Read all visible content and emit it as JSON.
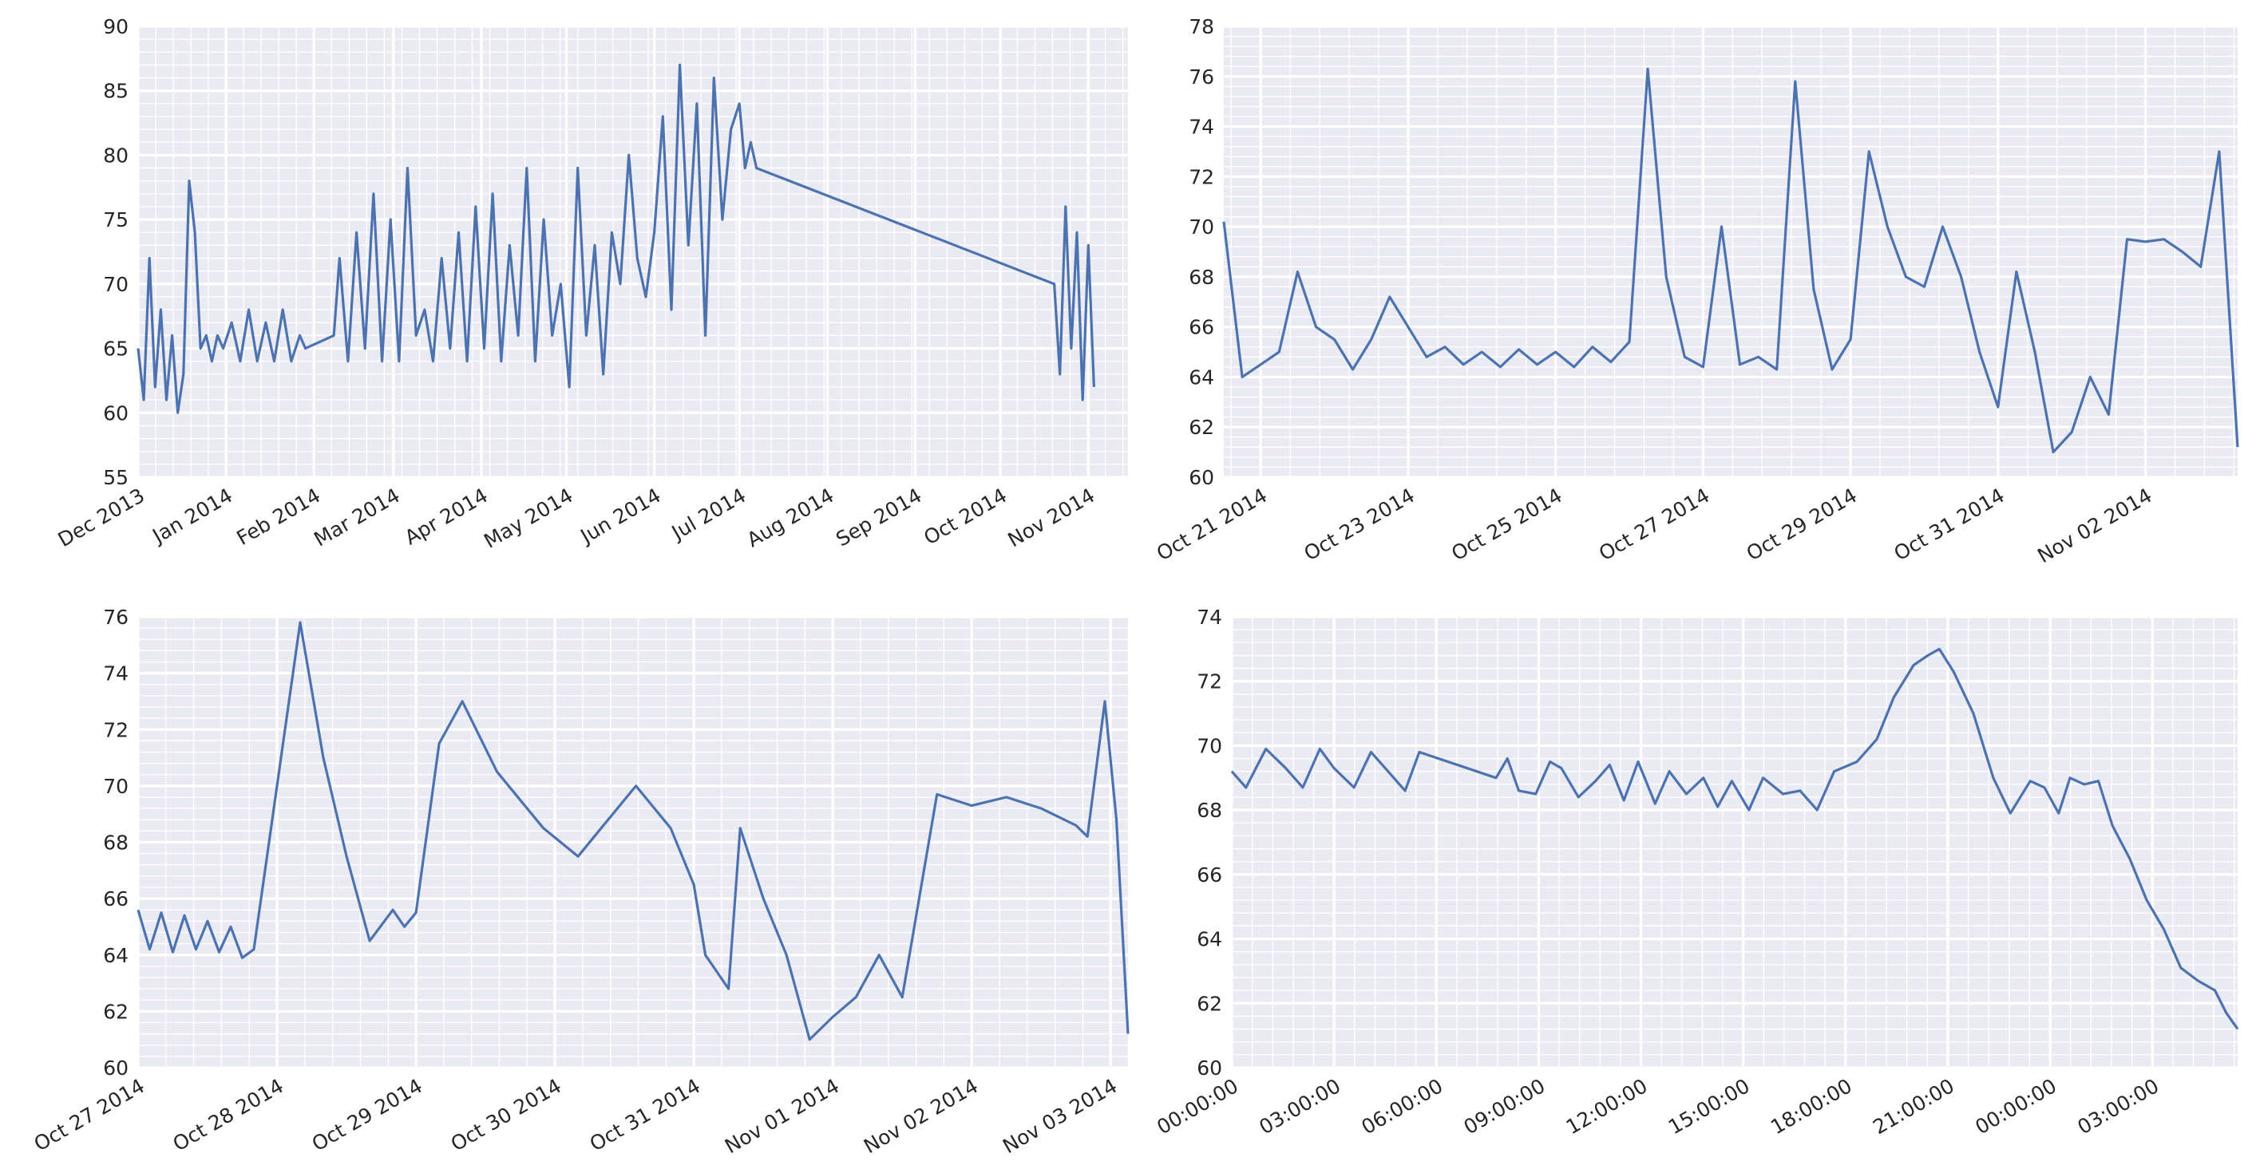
{
  "chart_data": [
    {
      "type": "line",
      "series_color": "#4C72B0",
      "background": "#EAEAF2",
      "grid": true,
      "xlabel": "",
      "ylabel": "",
      "xlim": [
        "2013-12-01",
        "2014-11-15"
      ],
      "ylim": [
        55,
        90
      ],
      "yticks": [
        55,
        60,
        65,
        70,
        75,
        80,
        85,
        90
      ],
      "xticks": [
        "2013-12-01",
        "2014-01-01",
        "2014-02-01",
        "2014-03-01",
        "2014-04-01",
        "2014-05-01",
        "2014-06-01",
        "2014-07-01",
        "2014-08-01",
        "2014-09-01",
        "2014-10-01",
        "2014-11-01"
      ],
      "xtick_labels": [
        "Dec 2013",
        "Jan 2014",
        "Feb 2014",
        "Mar 2014",
        "Apr 2014",
        "May 2014",
        "Jun 2014",
        "Jul 2014",
        "Aug 2014",
        "Sep 2014",
        "Oct 2014",
        "Nov 2014"
      ],
      "x": [
        "2013-12-01",
        "2013-12-03",
        "2013-12-05",
        "2013-12-07",
        "2013-12-09",
        "2013-12-11",
        "2013-12-13",
        "2013-12-15",
        "2013-12-17",
        "2013-12-19",
        "2013-12-21",
        "2013-12-23",
        "2013-12-25",
        "2013-12-27",
        "2013-12-29",
        "2013-12-31",
        "2014-01-03",
        "2014-01-06",
        "2014-01-09",
        "2014-01-12",
        "2014-01-15",
        "2014-01-18",
        "2014-01-21",
        "2014-01-24",
        "2014-01-27",
        "2014-01-29",
        "2014-02-08",
        "2014-02-10",
        "2014-02-13",
        "2014-02-16",
        "2014-02-19",
        "2014-02-22",
        "2014-02-25",
        "2014-02-28",
        "2014-03-03",
        "2014-03-06",
        "2014-03-09",
        "2014-03-12",
        "2014-03-15",
        "2014-03-18",
        "2014-03-21",
        "2014-03-24",
        "2014-03-27",
        "2014-03-30",
        "2014-04-02",
        "2014-04-05",
        "2014-04-08",
        "2014-04-11",
        "2014-04-14",
        "2014-04-17",
        "2014-04-20",
        "2014-04-23",
        "2014-04-26",
        "2014-04-29",
        "2014-05-02",
        "2014-05-05",
        "2014-05-08",
        "2014-05-11",
        "2014-05-14",
        "2014-05-17",
        "2014-05-20",
        "2014-05-23",
        "2014-05-26",
        "2014-05-29",
        "2014-06-01",
        "2014-06-04",
        "2014-06-07",
        "2014-06-10",
        "2014-06-13",
        "2014-06-16",
        "2014-06-19",
        "2014-06-22",
        "2014-06-25",
        "2014-06-28",
        "2014-07-01",
        "2014-07-03",
        "2014-07-05",
        "2014-07-07",
        "2014-10-20",
        "2014-10-22",
        "2014-10-24",
        "2014-10-26",
        "2014-10-28",
        "2014-10-30",
        "2014-11-01",
        "2014-11-03"
      ],
      "y": [
        65,
        61,
        72,
        62,
        68,
        61,
        66,
        60,
        63,
        78,
        74,
        65,
        66,
        64,
        66,
        65,
        67,
        64,
        68,
        64,
        67,
        64,
        68,
        64,
        66,
        65,
        66,
        72,
        64,
        74,
        65,
        77,
        64,
        75,
        64,
        79,
        66,
        68,
        64,
        72,
        65,
        74,
        64,
        76,
        65,
        77,
        64,
        73,
        66,
        79,
        64,
        75,
        66,
        70,
        62,
        79,
        66,
        73,
        63,
        74,
        70,
        80,
        72,
        69,
        74,
        83,
        68,
        87,
        73,
        84,
        66,
        86,
        75,
        82,
        84,
        79,
        81,
        79,
        70,
        63,
        76,
        65,
        74,
        61,
        73,
        62
      ]
    },
    {
      "type": "line",
      "series_color": "#4C72B0",
      "background": "#EAEAF2",
      "grid": true,
      "xlabel": "",
      "ylabel": "",
      "xlim": [
        "2014-10-20T12:00",
        "2014-11-03T06:00"
      ],
      "ylim": [
        60,
        78
      ],
      "yticks": [
        60,
        62,
        64,
        66,
        68,
        70,
        72,
        74,
        76,
        78
      ],
      "xticks": [
        "2014-10-21",
        "2014-10-23",
        "2014-10-25",
        "2014-10-27",
        "2014-10-29",
        "2014-10-31",
        "2014-11-02"
      ],
      "xtick_labels": [
        "Oct 21 2014",
        "Oct 23 2014",
        "Oct 25 2014",
        "Oct 27 2014",
        "Oct 29 2014",
        "Oct 31 2014",
        "Nov 02 2014"
      ],
      "x": [
        "2014-10-20T12:00",
        "2014-10-20T18:00",
        "2014-10-21T00:00",
        "2014-10-21T06:00",
        "2014-10-21T12:00",
        "2014-10-21T18:00",
        "2014-10-22T00:00",
        "2014-10-22T06:00",
        "2014-10-22T12:00",
        "2014-10-22T18:00",
        "2014-10-23T00:00",
        "2014-10-23T06:00",
        "2014-10-23T12:00",
        "2014-10-23T18:00",
        "2014-10-24T00:00",
        "2014-10-24T06:00",
        "2014-10-24T12:00",
        "2014-10-24T18:00",
        "2014-10-25T00:00",
        "2014-10-25T06:00",
        "2014-10-25T12:00",
        "2014-10-25T18:00",
        "2014-10-26T00:00",
        "2014-10-26T06:00",
        "2014-10-26T12:00",
        "2014-10-26T18:00",
        "2014-10-27T00:00",
        "2014-10-27T06:00",
        "2014-10-27T12:00",
        "2014-10-27T18:00",
        "2014-10-28T00:00",
        "2014-10-28T06:00",
        "2014-10-28T12:00",
        "2014-10-28T18:00",
        "2014-10-29T00:00",
        "2014-10-29T06:00",
        "2014-10-29T12:00",
        "2014-10-29T18:00",
        "2014-10-30T00:00",
        "2014-10-30T06:00",
        "2014-10-30T12:00",
        "2014-10-30T18:00",
        "2014-10-31T00:00",
        "2014-10-31T06:00",
        "2014-10-31T12:00",
        "2014-10-31T18:00",
        "2014-11-01T00:00",
        "2014-11-01T06:00",
        "2014-11-01T12:00",
        "2014-11-01T18:00",
        "2014-11-02T00:00",
        "2014-11-02T06:00",
        "2014-11-02T12:00",
        "2014-11-02T18:00",
        "2014-11-03T00:00",
        "2014-11-03T06:00"
      ],
      "y": [
        70.2,
        64.0,
        64.5,
        65.0,
        68.2,
        66.0,
        65.5,
        64.3,
        65.5,
        67.2,
        66.0,
        64.8,
        65.2,
        64.5,
        65.0,
        64.4,
        65.1,
        64.5,
        65.0,
        64.4,
        65.2,
        64.6,
        65.4,
        76.3,
        68.0,
        64.8,
        64.4,
        70.0,
        64.5,
        64.8,
        64.3,
        75.8,
        67.5,
        64.3,
        65.5,
        73.0,
        70.0,
        68.0,
        67.6,
        70.0,
        68.0,
        65.0,
        62.8,
        68.2,
        65.0,
        61.0,
        61.8,
        64.0,
        62.5,
        69.5,
        69.4,
        69.5,
        69.0,
        68.4,
        73.0,
        61.2
      ]
    },
    {
      "type": "line",
      "series_color": "#4C72B0",
      "background": "#EAEAF2",
      "grid": true,
      "xlabel": "",
      "ylabel": "",
      "xlim": [
        "2014-10-27T00:00",
        "2014-11-03T03:00"
      ],
      "ylim": [
        60,
        76
      ],
      "yticks": [
        60,
        62,
        64,
        66,
        68,
        70,
        72,
        74,
        76
      ],
      "xticks": [
        "2014-10-27",
        "2014-10-28",
        "2014-10-29",
        "2014-10-30",
        "2014-10-31",
        "2014-11-01",
        "2014-11-02",
        "2014-11-03"
      ],
      "xtick_labels": [
        "Oct 27 2014",
        "Oct 28 2014",
        "Oct 29 2014",
        "Oct 30 2014",
        "Oct 31 2014",
        "Nov 01 2014",
        "Nov 02 2014",
        "Nov 03 2014"
      ],
      "x": [
        "2014-10-27T00:00",
        "2014-10-27T02:00",
        "2014-10-27T04:00",
        "2014-10-27T06:00",
        "2014-10-27T08:00",
        "2014-10-27T10:00",
        "2014-10-27T12:00",
        "2014-10-27T14:00",
        "2014-10-27T16:00",
        "2014-10-27T18:00",
        "2014-10-27T20:00",
        "2014-10-28T00:00",
        "2014-10-28T04:00",
        "2014-10-28T08:00",
        "2014-10-28T12:00",
        "2014-10-28T16:00",
        "2014-10-28T20:00",
        "2014-10-28T22:00",
        "2014-10-29T00:00",
        "2014-10-29T04:00",
        "2014-10-29T08:00",
        "2014-10-29T14:00",
        "2014-10-29T22:00",
        "2014-10-30T04:00",
        "2014-10-30T08:00",
        "2014-10-30T14:00",
        "2014-10-30T20:00",
        "2014-10-31T00:00",
        "2014-10-31T02:00",
        "2014-10-31T06:00",
        "2014-10-31T08:00",
        "2014-10-31T12:00",
        "2014-10-31T16:00",
        "2014-10-31T20:00",
        "2014-11-01T00:00",
        "2014-11-01T04:00",
        "2014-11-01T08:00",
        "2014-11-01T12:00",
        "2014-11-01T18:00",
        "2014-11-02T00:00",
        "2014-11-02T06:00",
        "2014-11-02T12:00",
        "2014-11-02T18:00",
        "2014-11-02T20:00",
        "2014-11-02T23:00",
        "2014-11-03T01:00",
        "2014-11-03T03:00"
      ],
      "y": [
        65.6,
        64.2,
        65.5,
        64.1,
        65.4,
        64.2,
        65.2,
        64.1,
        65.0,
        63.9,
        64.2,
        70.0,
        75.8,
        71.0,
        67.5,
        64.5,
        65.6,
        65.0,
        65.5,
        71.5,
        73.0,
        70.5,
        68.5,
        67.5,
        68.5,
        70.0,
        68.5,
        66.5,
        64.0,
        62.8,
        68.5,
        66.0,
        64.0,
        61.0,
        61.8,
        62.5,
        64.0,
        62.5,
        69.7,
        69.3,
        69.6,
        69.2,
        68.6,
        68.2,
        73.0,
        68.8,
        61.2
      ]
    },
    {
      "type": "line",
      "series_color": "#4C72B0",
      "background": "#EAEAF2",
      "grid": true,
      "xlabel": "",
      "ylabel": "",
      "xlim": [
        "2014-11-02T00:00",
        "2014-11-03T05:30"
      ],
      "ylim": [
        60,
        74
      ],
      "yticks": [
        60,
        62,
        64,
        66,
        68,
        70,
        72,
        74
      ],
      "xticks": [
        "2014-11-02T00:00",
        "2014-11-02T03:00",
        "2014-11-02T06:00",
        "2014-11-02T09:00",
        "2014-11-02T12:00",
        "2014-11-02T15:00",
        "2014-11-02T18:00",
        "2014-11-02T21:00",
        "2014-11-03T00:00",
        "2014-11-03T03:00"
      ],
      "xtick_labels": [
        "00:00:00",
        "03:00:00",
        "06:00:00",
        "09:00:00",
        "12:00:00",
        "15:00:00",
        "18:00:00",
        "21:00:00",
        "00:00:00",
        "03:00:00"
      ],
      "x": [
        "2014-11-02T00:00",
        "2014-11-02T00:25",
        "2014-11-02T01:00",
        "2014-11-02T01:35",
        "2014-11-02T02:05",
        "2014-11-02T02:35",
        "2014-11-02T03:00",
        "2014-11-02T03:35",
        "2014-11-02T04:05",
        "2014-11-02T04:35",
        "2014-11-02T05:05",
        "2014-11-02T05:30",
        "2014-11-02T07:45",
        "2014-11-02T08:05",
        "2014-11-02T08:25",
        "2014-11-02T08:55",
        "2014-11-02T09:20",
        "2014-11-02T09:40",
        "2014-11-02T10:10",
        "2014-11-02T10:40",
        "2014-11-02T11:05",
        "2014-11-02T11:30",
        "2014-11-02T11:55",
        "2014-11-02T12:25",
        "2014-11-02T12:50",
        "2014-11-02T13:20",
        "2014-11-02T13:50",
        "2014-11-02T14:15",
        "2014-11-02T14:40",
        "2014-11-02T15:10",
        "2014-11-02T15:35",
        "2014-11-02T16:10",
        "2014-11-02T16:40",
        "2014-11-02T17:10",
        "2014-11-02T17:40",
        "2014-11-02T18:20",
        "2014-11-02T18:55",
        "2014-11-02T19:25",
        "2014-11-02T20:00",
        "2014-11-02T20:25",
        "2014-11-02T20:45",
        "2014-11-02T21:10",
        "2014-11-02T21:45",
        "2014-11-02T22:20",
        "2014-11-02T22:50",
        "2014-11-02T23:25",
        "2014-11-02T23:50",
        "2014-11-03T00:15",
        "2014-11-03T00:35",
        "2014-11-03T01:00",
        "2014-11-03T01:25",
        "2014-11-03T01:50",
        "2014-11-03T02:20",
        "2014-11-03T02:50",
        "2014-11-03T03:20",
        "2014-11-03T03:50",
        "2014-11-03T04:20",
        "2014-11-03T04:50",
        "2014-11-03T05:10",
        "2014-11-03T05:30"
      ],
      "y": [
        69.2,
        68.7,
        69.9,
        69.3,
        68.7,
        69.9,
        69.3,
        68.7,
        69.8,
        69.2,
        68.6,
        69.8,
        69.0,
        69.6,
        68.6,
        68.5,
        69.5,
        69.3,
        68.4,
        68.9,
        69.4,
        68.3,
        69.5,
        68.2,
        69.2,
        68.5,
        69.0,
        68.1,
        68.9,
        68.0,
        69.0,
        68.5,
        68.6,
        68.0,
        69.2,
        69.5,
        70.2,
        71.5,
        72.5,
        72.8,
        73.0,
        72.3,
        71.0,
        69.0,
        67.9,
        68.9,
        68.7,
        67.9,
        69.0,
        68.8,
        68.9,
        67.5,
        66.5,
        65.2,
        64.3,
        63.1,
        62.7,
        62.4,
        61.7,
        61.2
      ]
    }
  ]
}
